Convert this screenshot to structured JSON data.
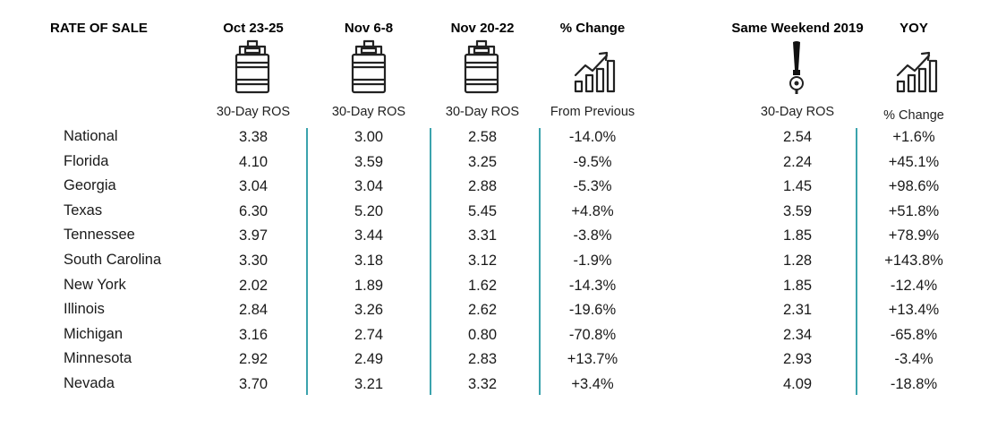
{
  "headers": {
    "rate_of_sale": "RATE OF SALE",
    "oct": "Oct 23-25",
    "nov6": "Nov 6-8",
    "nov20": "Nov 20-22",
    "pct_change": "% Change",
    "same_weekend": "Same Weekend 2019",
    "yoy": "YOY"
  },
  "subheaders": {
    "oct": "30-Day ROS",
    "nov6": "30-Day ROS",
    "nov20": "30-Day ROS",
    "pct_change": "From Previous",
    "same_weekend": "30-Day ROS",
    "yoy": "% Change"
  },
  "icons": {
    "keg": "keg-icon",
    "growth": "growth-chart-icon",
    "tap": "beer-tap-icon"
  },
  "colors": {
    "divider": "#3ba3ad",
    "icon": "#222222"
  },
  "chart_data": {
    "type": "table",
    "columns": [
      "Oct 23-25",
      "Nov 6-8",
      "Nov 20-22",
      "% Change",
      "Same Weekend 2019",
      "YOY"
    ],
    "rows": [
      {
        "label": "National",
        "values": [
          "3.38",
          "3.00",
          "2.58",
          "-14.0%",
          "2.54",
          "+1.6%"
        ]
      },
      {
        "label": "Florida",
        "values": [
          "4.10",
          "3.59",
          "3.25",
          "-9.5%",
          "2.24",
          "+45.1%"
        ]
      },
      {
        "label": "Georgia",
        "values": [
          "3.04",
          "3.04",
          "2.88",
          "-5.3%",
          "1.45",
          "+98.6%"
        ]
      },
      {
        "label": "Texas",
        "values": [
          "6.30",
          "5.20",
          "5.45",
          "+4.8%",
          "3.59",
          "+51.8%"
        ]
      },
      {
        "label": "Tennessee",
        "values": [
          "3.97",
          "3.44",
          "3.31",
          "-3.8%",
          "1.85",
          "+78.9%"
        ]
      },
      {
        "label": "South Carolina",
        "values": [
          "3.30",
          "3.18",
          "3.12",
          "-1.9%",
          "1.28",
          "+143.8%"
        ]
      },
      {
        "label": "New York",
        "values": [
          "2.02",
          "1.89",
          "1.62",
          "-14.3%",
          "1.85",
          "-12.4%"
        ]
      },
      {
        "label": "Illinois",
        "values": [
          "2.84",
          "3.26",
          "2.62",
          "-19.6%",
          "2.31",
          "+13.4%"
        ]
      },
      {
        "label": "Michigan",
        "values": [
          "3.16",
          "2.74",
          "0.80",
          "-70.8%",
          "2.34",
          "-65.8%"
        ]
      },
      {
        "label": "Minnesota",
        "values": [
          "2.92",
          "2.49",
          "2.83",
          "+13.7%",
          "2.93",
          "-3.4%"
        ]
      },
      {
        "label": "Nevada",
        "values": [
          "3.70",
          "3.21",
          "3.32",
          "+3.4%",
          "4.09",
          "-18.8%"
        ]
      }
    ]
  }
}
